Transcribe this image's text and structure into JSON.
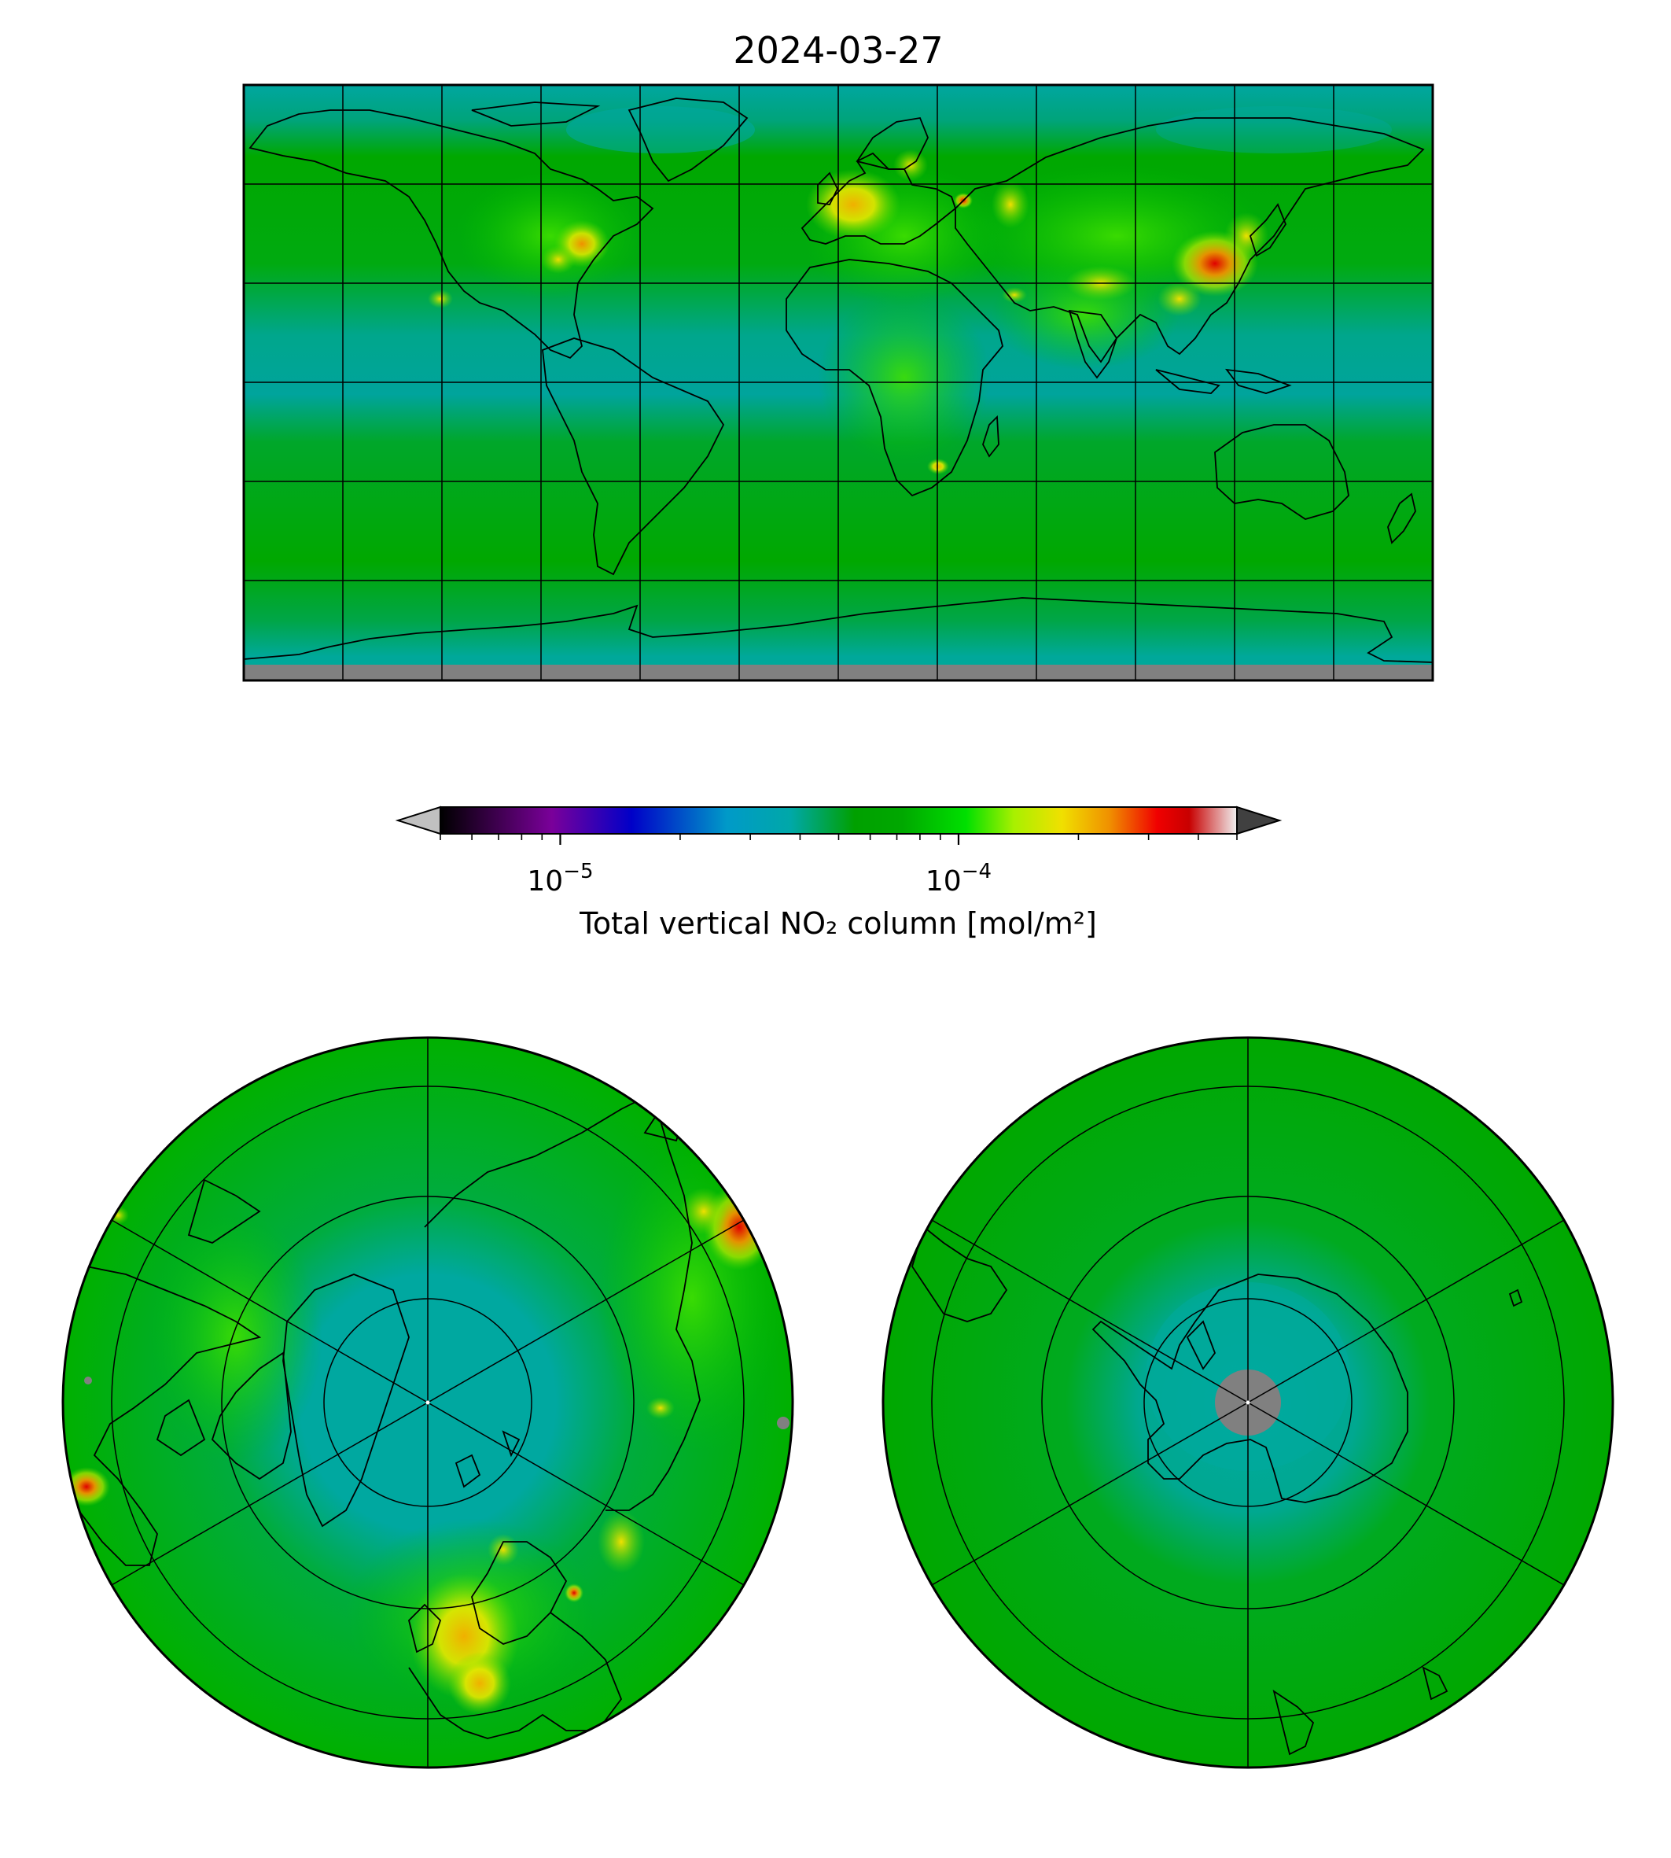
{
  "figure": {
    "title": "2024-03-27"
  },
  "colorbar": {
    "label": "Total vertical NO₂ column [mol/m²]",
    "scale": "log",
    "range": [
      5e-06,
      0.0005
    ],
    "ticks": [
      {
        "value": 1e-05,
        "base": "10",
        "exp": "−5"
      },
      {
        "value": 0.0001,
        "base": "10",
        "exp": "−4"
      }
    ],
    "extend": "both",
    "under_color": "#c0c0c0",
    "over_color": "#404040",
    "stops": [
      {
        "t": 0.0,
        "color": "#000000"
      },
      {
        "t": 0.14,
        "color": "#7a009a"
      },
      {
        "t": 0.24,
        "color": "#0000c8"
      },
      {
        "t": 0.36,
        "color": "#009ac8"
      },
      {
        "t": 0.44,
        "color": "#00a8a8"
      },
      {
        "t": 0.52,
        "color": "#00a000"
      },
      {
        "t": 0.58,
        "color": "#00a800"
      },
      {
        "t": 0.66,
        "color": "#00e000"
      },
      {
        "t": 0.72,
        "color": "#a8f000"
      },
      {
        "t": 0.78,
        "color": "#f0e000"
      },
      {
        "t": 0.84,
        "color": "#f09000"
      },
      {
        "t": 0.9,
        "color": "#f00000"
      },
      {
        "t": 0.94,
        "color": "#c80000"
      },
      {
        "t": 1.0,
        "color": "#f0f0f0"
      }
    ]
  },
  "maps": {
    "nodata_color": "#808080",
    "background_color": "#00a800",
    "clean_ocean_color": "#00a0a0",
    "hotspots": [
      {
        "name": "europe",
        "color": "#f0e000"
      },
      {
        "name": "east-china",
        "color": "#e00000"
      },
      {
        "name": "us-east",
        "color": "#f0c000"
      },
      {
        "name": "highveld",
        "color": "#f0e000"
      }
    ]
  }
}
